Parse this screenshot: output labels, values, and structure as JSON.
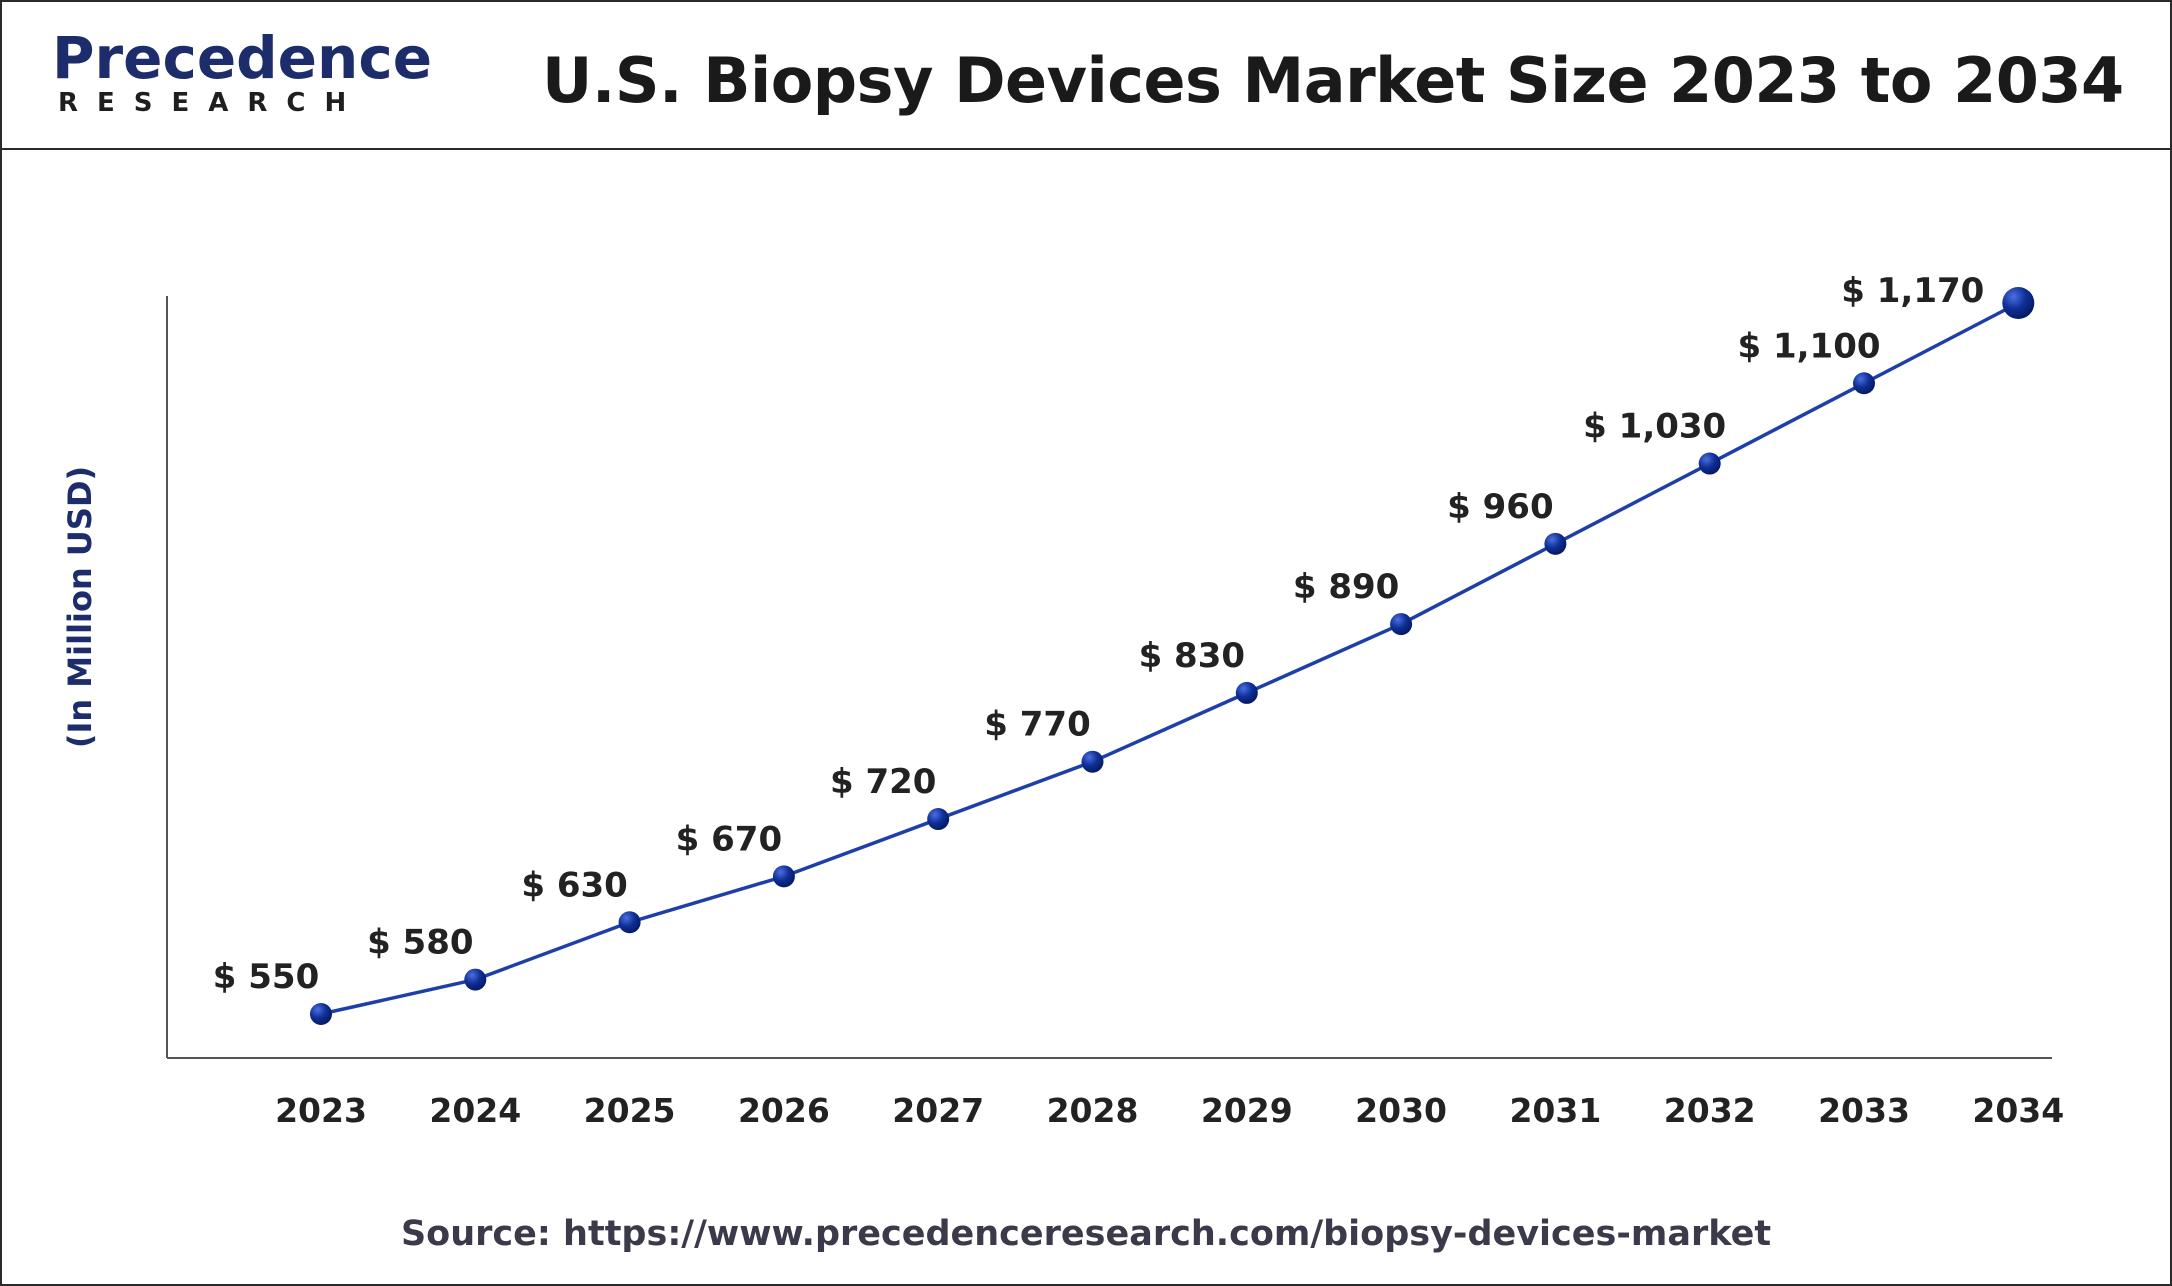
{
  "header": {
    "logo_word": "Precedence",
    "logo_sub": "RESEARCH",
    "title": "U.S. Biopsy Devices Market Size 2023 to 2034"
  },
  "footer": {
    "source": "Source: https://www.precedenceresearch.com/biopsy-devices-market"
  },
  "colors": {
    "line": "#1e3fa8",
    "marker": "#0d2a8a",
    "brand": "#1d2d6b",
    "axis": "#555555"
  },
  "chart_data": {
    "type": "line",
    "title": "U.S. Biopsy Devices Market Size 2023 to 2034",
    "ylabel": "(In Million USD)",
    "xlabel": "",
    "categories": [
      "2023",
      "2024",
      "2025",
      "2026",
      "2027",
      "2028",
      "2029",
      "2030",
      "2031",
      "2032",
      "2033",
      "2034"
    ],
    "series": [
      {
        "values": [
          550,
          580,
          630,
          670,
          720,
          770,
          830,
          890,
          960,
          1030,
          1100,
          1170
        ],
        "labels": [
          "$ 550",
          "$ 580",
          "$ 630",
          "$ 670",
          "$ 720",
          "$ 770",
          "$ 830",
          "$ 890",
          "$ 960",
          "$ 1,030",
          "$ 1,100",
          "$ 1,170"
        ]
      }
    ],
    "grid": false,
    "legend": "none"
  }
}
